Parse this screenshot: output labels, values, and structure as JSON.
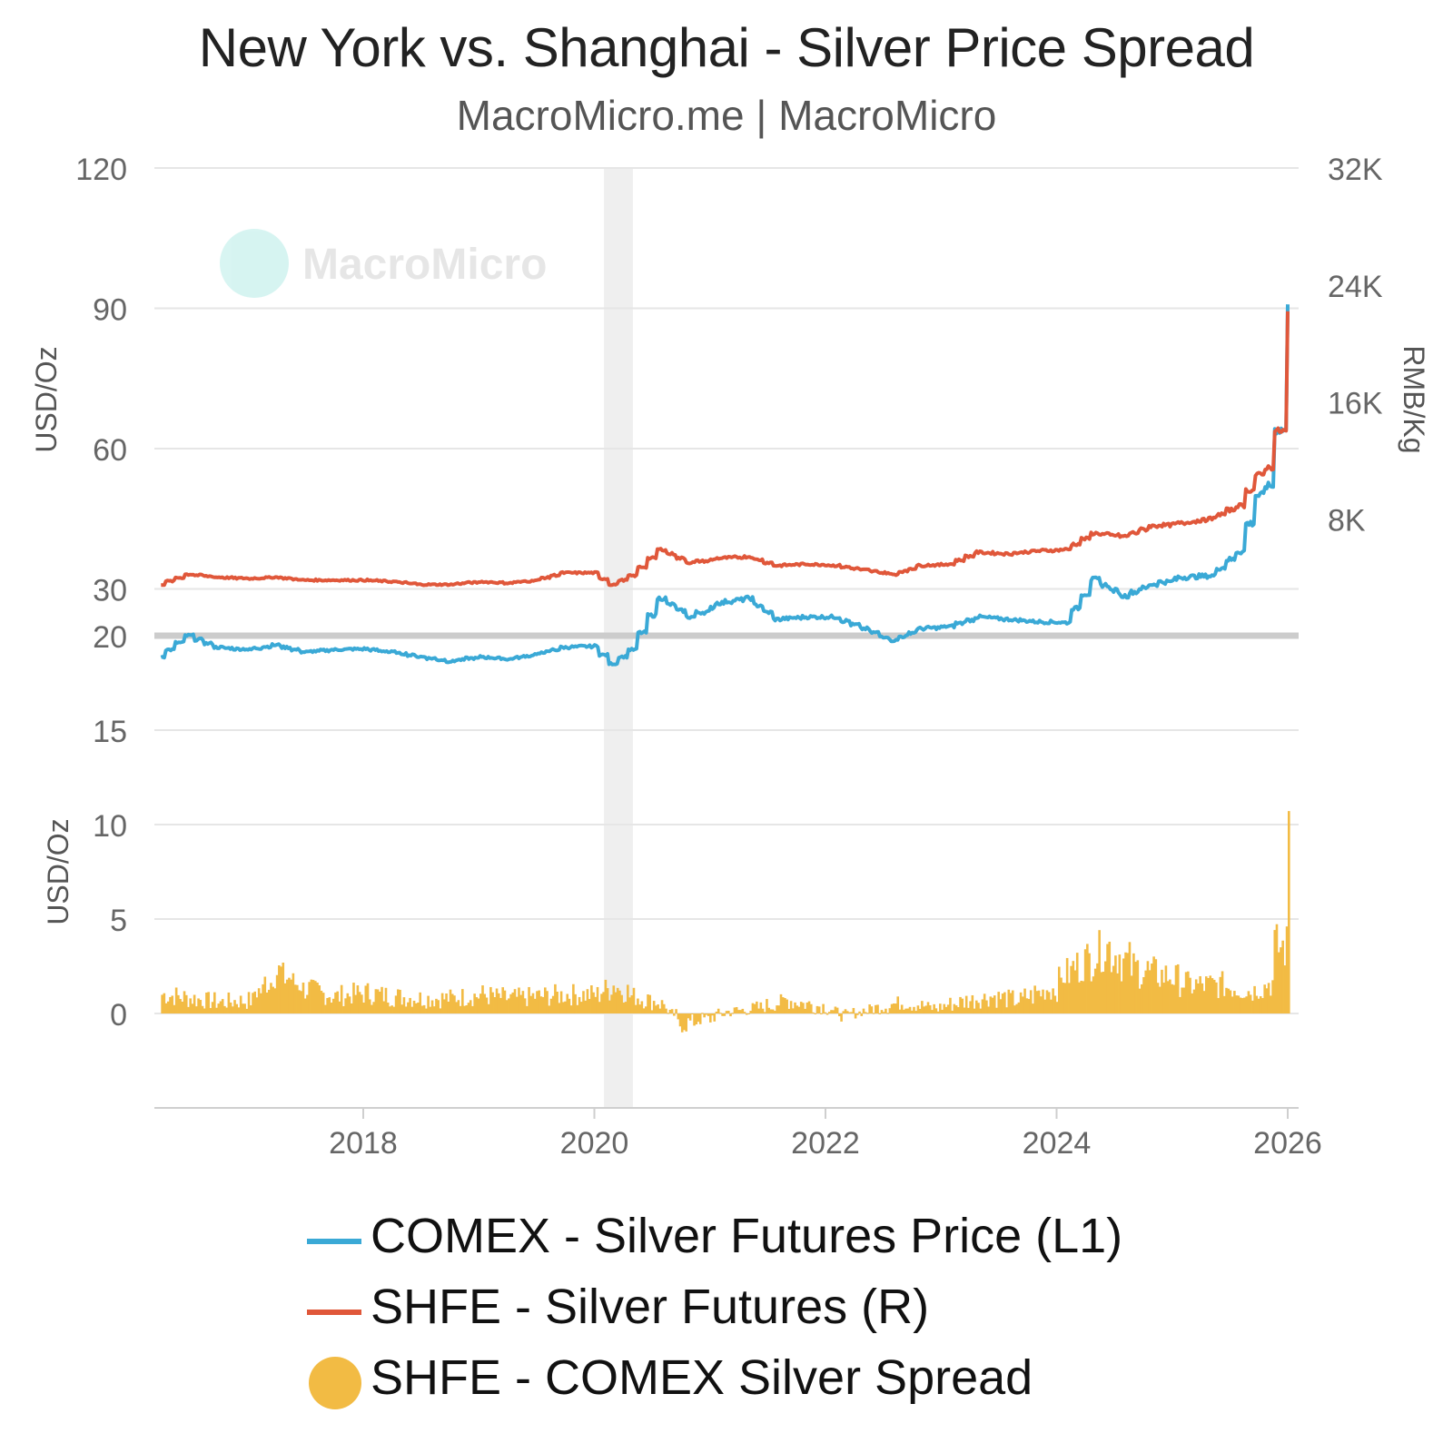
{
  "header": {
    "title": "New York vs. Shanghai - Silver Price Spread",
    "subtitle": "MacroMicro.me | MacroMicro"
  },
  "watermark": {
    "text": "MacroMicro"
  },
  "colors": {
    "comex": "#3aa9d6",
    "shfe": "#e0573a",
    "spread": "#f2bb44",
    "recession_band": "#efefef",
    "grid": "#e6e6e6"
  },
  "legend": [
    {
      "label": "COMEX - Silver Futures Price (L1)",
      "marker": "line",
      "color": "#3aa9d6"
    },
    {
      "label": "SHFE - Silver Futures (R)",
      "marker": "line",
      "color": "#e0573a"
    },
    {
      "label": "SHFE - COMEX Silver Spread",
      "marker": "dot",
      "color": "#f2bb44"
    }
  ],
  "chart_data": [
    {
      "type": "line",
      "panel": "top",
      "ylabel_left": "USD/Oz",
      "ylabel_right": "RMB/Kg",
      "left_ticks": [
        "120",
        "90",
        "60",
        "30",
        "20"
      ],
      "right_ticks": [
        "32K",
        "24K",
        "16K",
        "8K"
      ],
      "ylim_left": [
        20,
        120
      ],
      "ylim_right": [
        0,
        32000
      ],
      "x_ticks": [
        "2018",
        "2020",
        "2022",
        "2024",
        "2026"
      ],
      "xlim": [
        "2016-04",
        "2026-01"
      ],
      "shaded_period": [
        "2020-02",
        "2020-05"
      ],
      "series": [
        {
          "name": "COMEX - Silver Futures Price (L1)",
          "axis": "left",
          "x": [
            "2016-04",
            "2016-07",
            "2016-10",
            "2017-01",
            "2017-04",
            "2017-07",
            "2017-10",
            "2018-01",
            "2018-04",
            "2018-07",
            "2018-10",
            "2019-01",
            "2019-04",
            "2019-07",
            "2019-10",
            "2020-01",
            "2020-03",
            "2020-05",
            "2020-08",
            "2020-11",
            "2021-02",
            "2021-05",
            "2021-08",
            "2021-11",
            "2022-02",
            "2022-05",
            "2022-08",
            "2022-11",
            "2023-02",
            "2023-05",
            "2023-08",
            "2023-11",
            "2024-02",
            "2024-05",
            "2024-08",
            "2024-11",
            "2025-02",
            "2025-05",
            "2025-08",
            "2025-10",
            "2025-11",
            "2025-12",
            "2026-01"
          ],
          "values": [
            15.5,
            20.0,
            17.5,
            17.0,
            18.0,
            16.5,
            17.0,
            17.2,
            16.5,
            15.5,
            14.5,
            15.5,
            15.0,
            16.0,
            17.5,
            17.8,
            14.0,
            17.0,
            28.0,
            24.0,
            27.0,
            28.0,
            23.5,
            24.0,
            24.0,
            21.5,
            19.0,
            21.5,
            22.0,
            24.0,
            23.5,
            23.0,
            22.8,
            32.0,
            28.5,
            31.0,
            32.5,
            32.8,
            38.0,
            50.0,
            52.0,
            64.0,
            90.0
          ]
        },
        {
          "name": "SHFE - Silver Futures (R)",
          "axis": "right",
          "x": [
            "2016-04",
            "2016-07",
            "2016-10",
            "2017-01",
            "2017-04",
            "2017-07",
            "2017-10",
            "2018-01",
            "2018-04",
            "2018-07",
            "2018-10",
            "2019-01",
            "2019-04",
            "2019-07",
            "2019-10",
            "2020-01",
            "2020-03",
            "2020-05",
            "2020-08",
            "2020-11",
            "2021-02",
            "2021-05",
            "2021-08",
            "2021-11",
            "2022-02",
            "2022-05",
            "2022-08",
            "2022-11",
            "2023-02",
            "2023-05",
            "2023-08",
            "2023-11",
            "2024-02",
            "2024-05",
            "2024-08",
            "2024-11",
            "2025-02",
            "2025-05",
            "2025-08",
            "2025-10",
            "2025-11",
            "2025-12",
            "2026-01"
          ],
          "values": [
            3500,
            4200,
            4000,
            3900,
            4000,
            3800,
            3800,
            3800,
            3700,
            3500,
            3500,
            3700,
            3600,
            3800,
            4300,
            4300,
            3500,
            4100,
            5900,
            5000,
            5300,
            5400,
            4800,
            4900,
            4800,
            4500,
            4200,
            4800,
            4900,
            5700,
            5600,
            5800,
            5900,
            7000,
            6800,
            7500,
            7700,
            8000,
            8900,
            11000,
            11500,
            14000,
            22000
          ]
        },
        {
          "name": "SHFE - COMEX Silver Spread",
          "axis": "left",
          "panel": "bottom",
          "ylabel": "USD/Oz",
          "ticks": [
            "15",
            "10",
            "5",
            "0"
          ],
          "ylim": [
            -5,
            20
          ],
          "x": [
            "2016-04",
            "2016-07",
            "2016-10",
            "2017-01",
            "2017-04",
            "2017-07",
            "2017-10",
            "2018-01",
            "2018-04",
            "2018-07",
            "2018-10",
            "2019-01",
            "2019-04",
            "2019-07",
            "2019-10",
            "2020-01",
            "2020-03",
            "2020-05",
            "2020-08",
            "2020-10",
            "2020-12",
            "2021-03",
            "2021-06",
            "2021-09",
            "2021-12",
            "2022-03",
            "2022-06",
            "2022-09",
            "2022-12",
            "2023-03",
            "2023-06",
            "2023-09",
            "2023-12",
            "2024-03",
            "2024-06",
            "2024-09",
            "2024-12",
            "2025-03",
            "2025-06",
            "2025-09",
            "2025-11",
            "2025-12",
            "2026-01"
          ],
          "values": [
            1.0,
            0.8,
            0.6,
            0.7,
            2.2,
            1.3,
            0.9,
            1.1,
            0.9,
            0.8,
            0.8,
            1.0,
            0.8,
            0.9,
            1.0,
            1.0,
            1.5,
            0.9,
            0.5,
            -0.6,
            -0.3,
            0.1,
            0.3,
            0.7,
            0.4,
            -0.1,
            0.3,
            0.6,
            0.3,
            0.6,
            0.9,
            0.7,
            1.3,
            2.5,
            3.5,
            2.4,
            2.0,
            1.5,
            1.5,
            1.2,
            1.6,
            3.5,
            10.5
          ]
        }
      ]
    }
  ]
}
